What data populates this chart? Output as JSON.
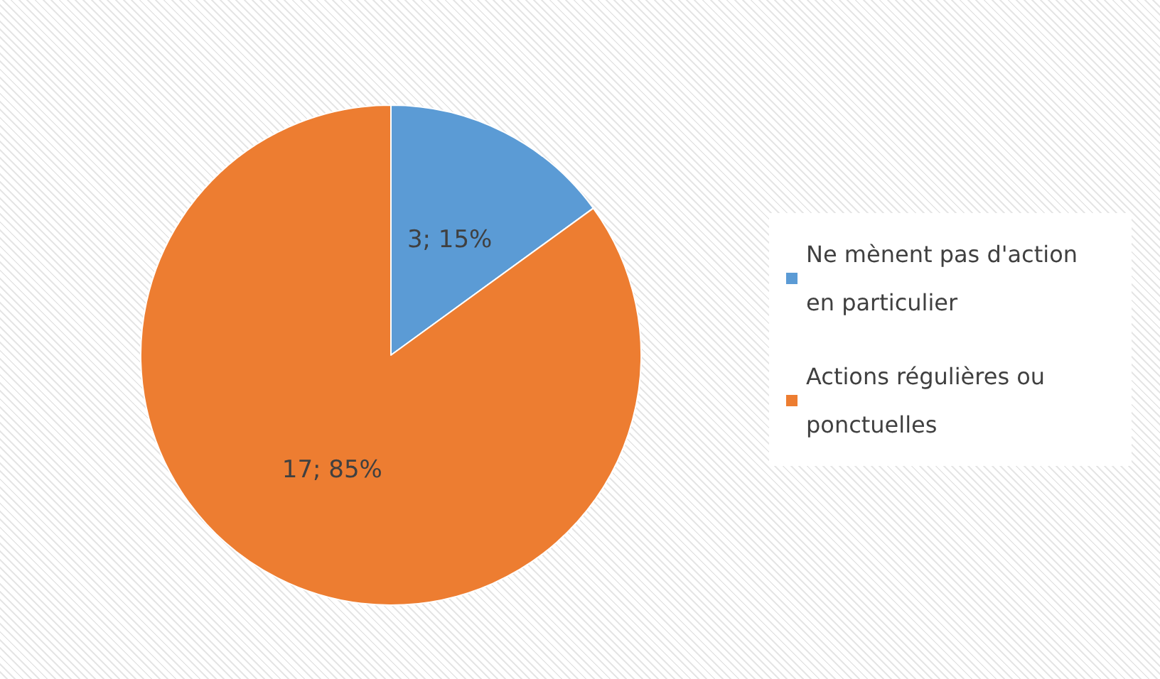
{
  "chart_data": {
    "type": "pie",
    "categories": [
      "Ne mènent pas d'action en particulier",
      "Actions régulières ou ponctuelles"
    ],
    "values": [
      3,
      17
    ],
    "colors": [
      "#5b9bd5",
      "#ed7d31"
    ],
    "value_labels": [
      "3; 15%",
      "17; 85%"
    ],
    "legend": "right"
  }
}
